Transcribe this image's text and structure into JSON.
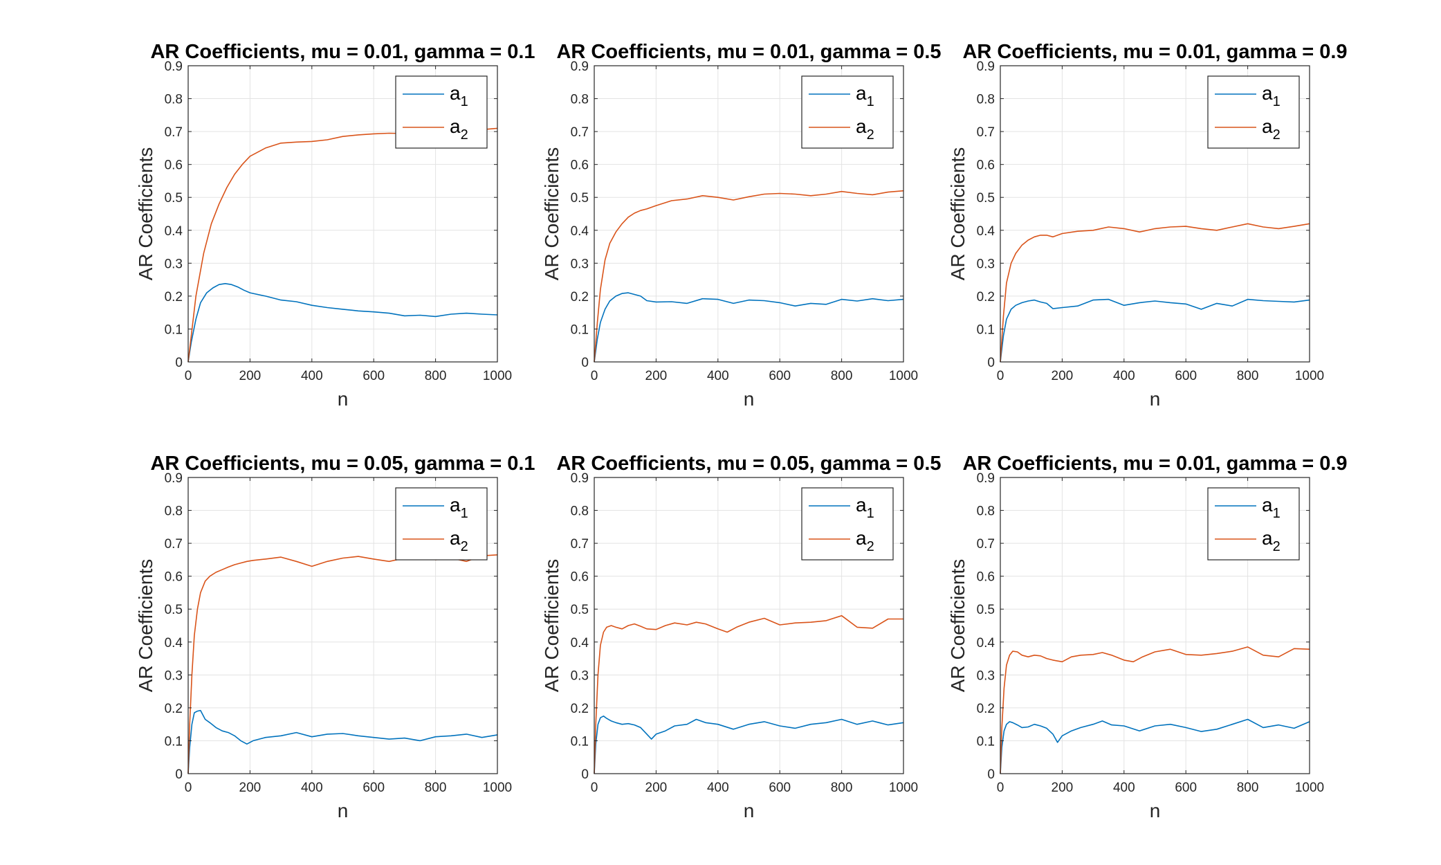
{
  "chart_data": [
    {
      "type": "line",
      "title": "AR Coefficients, mu = 0.01, gamma = 0.1",
      "xlabel": "n",
      "ylabel": "AR Coefficients",
      "xlim": [
        0,
        1000
      ],
      "ylim": [
        0,
        0.9
      ],
      "xticks": [
        "0",
        "200",
        "400",
        "600",
        "800",
        "1000"
      ],
      "yticks": [
        "0",
        "0.1",
        "0.2",
        "0.3",
        "0.4",
        "0.5",
        "0.6",
        "0.7",
        "0.8",
        "0.9"
      ],
      "grid": true,
      "legend_position": "top-right",
      "series": [
        {
          "name": "a_1",
          "color": "#0072BD",
          "x": [
            0,
            10,
            25,
            40,
            60,
            80,
            100,
            120,
            140,
            160,
            180,
            200,
            250,
            300,
            350,
            400,
            450,
            500,
            550,
            600,
            650,
            700,
            750,
            800,
            850,
            900,
            950,
            1000
          ],
          "values": [
            0,
            0.06,
            0.13,
            0.18,
            0.21,
            0.225,
            0.235,
            0.238,
            0.235,
            0.228,
            0.218,
            0.21,
            0.2,
            0.188,
            0.183,
            0.172,
            0.165,
            0.16,
            0.155,
            0.152,
            0.148,
            0.14,
            0.142,
            0.138,
            0.145,
            0.148,
            0.145,
            0.143
          ]
        },
        {
          "name": "a_2",
          "color": "#D95319",
          "x": [
            0,
            10,
            25,
            50,
            75,
            100,
            125,
            150,
            175,
            200,
            250,
            300,
            350,
            400,
            450,
            500,
            550,
            600,
            650,
            700,
            750,
            800,
            850,
            900,
            950,
            1000
          ],
          "values": [
            0,
            0.08,
            0.2,
            0.33,
            0.42,
            0.48,
            0.53,
            0.57,
            0.6,
            0.625,
            0.65,
            0.665,
            0.668,
            0.67,
            0.675,
            0.685,
            0.69,
            0.693,
            0.695,
            0.694,
            0.7,
            0.698,
            0.703,
            0.705,
            0.706,
            0.71
          ]
        }
      ]
    },
    {
      "type": "line",
      "title": "AR Coefficients, mu = 0.01, gamma = 0.5",
      "xlabel": "n",
      "ylabel": "AR Coefficients",
      "xlim": [
        0,
        1000
      ],
      "ylim": [
        0,
        0.9
      ],
      "xticks": [
        "0",
        "200",
        "400",
        "600",
        "800",
        "1000"
      ],
      "yticks": [
        "0",
        "0.1",
        "0.2",
        "0.3",
        "0.4",
        "0.5",
        "0.6",
        "0.7",
        "0.8",
        "0.9"
      ],
      "grid": true,
      "legend_position": "top-right",
      "series": [
        {
          "name": "a_1",
          "color": "#0072BD",
          "x": [
            0,
            10,
            20,
            35,
            50,
            70,
            90,
            110,
            130,
            150,
            170,
            200,
            250,
            300,
            350,
            400,
            450,
            500,
            550,
            600,
            650,
            700,
            750,
            800,
            850,
            900,
            950,
            1000
          ],
          "values": [
            0,
            0.07,
            0.12,
            0.16,
            0.185,
            0.2,
            0.208,
            0.21,
            0.205,
            0.2,
            0.186,
            0.182,
            0.183,
            0.178,
            0.192,
            0.19,
            0.178,
            0.188,
            0.186,
            0.18,
            0.17,
            0.178,
            0.175,
            0.19,
            0.185,
            0.192,
            0.186,
            0.19
          ]
        },
        {
          "name": "a_2",
          "color": "#D95319",
          "x": [
            0,
            10,
            20,
            35,
            50,
            70,
            90,
            110,
            130,
            150,
            170,
            200,
            250,
            300,
            350,
            400,
            450,
            500,
            550,
            600,
            650,
            700,
            750,
            800,
            850,
            900,
            950,
            1000
          ],
          "values": [
            0,
            0.12,
            0.22,
            0.31,
            0.36,
            0.395,
            0.42,
            0.44,
            0.452,
            0.46,
            0.465,
            0.475,
            0.49,
            0.495,
            0.505,
            0.5,
            0.492,
            0.502,
            0.51,
            0.512,
            0.51,
            0.505,
            0.51,
            0.518,
            0.512,
            0.508,
            0.516,
            0.52
          ]
        }
      ]
    },
    {
      "type": "line",
      "title": "AR Coefficients, mu = 0.01, gamma = 0.9",
      "xlabel": "n",
      "ylabel": "AR Coefficients",
      "xlim": [
        0,
        1000
      ],
      "ylim": [
        0,
        0.9
      ],
      "xticks": [
        "0",
        "200",
        "400",
        "600",
        "800",
        "1000"
      ],
      "yticks": [
        "0",
        "0.1",
        "0.2",
        "0.3",
        "0.4",
        "0.5",
        "0.6",
        "0.7",
        "0.8",
        "0.9"
      ],
      "grid": true,
      "legend_position": "top-right",
      "series": [
        {
          "name": "a_1",
          "color": "#0072BD",
          "x": [
            0,
            10,
            20,
            35,
            50,
            70,
            90,
            110,
            130,
            150,
            170,
            200,
            250,
            300,
            350,
            400,
            450,
            500,
            550,
            600,
            650,
            700,
            750,
            800,
            850,
            900,
            950,
            1000
          ],
          "values": [
            0,
            0.08,
            0.13,
            0.16,
            0.172,
            0.18,
            0.185,
            0.188,
            0.182,
            0.178,
            0.162,
            0.165,
            0.17,
            0.188,
            0.19,
            0.172,
            0.18,
            0.185,
            0.18,
            0.176,
            0.16,
            0.178,
            0.17,
            0.19,
            0.186,
            0.184,
            0.182,
            0.188
          ]
        },
        {
          "name": "a_2",
          "color": "#D95319",
          "x": [
            0,
            10,
            20,
            35,
            50,
            70,
            90,
            110,
            130,
            150,
            170,
            200,
            250,
            300,
            350,
            400,
            450,
            500,
            550,
            600,
            650,
            700,
            750,
            800,
            850,
            900,
            950,
            1000
          ],
          "values": [
            0,
            0.14,
            0.24,
            0.3,
            0.33,
            0.355,
            0.37,
            0.38,
            0.385,
            0.385,
            0.38,
            0.39,
            0.397,
            0.4,
            0.41,
            0.405,
            0.395,
            0.405,
            0.41,
            0.412,
            0.405,
            0.4,
            0.41,
            0.42,
            0.41,
            0.405,
            0.412,
            0.42
          ]
        }
      ]
    },
    {
      "type": "line",
      "title": "AR Coefficients, mu = 0.05, gamma = 0.1",
      "xlabel": "n",
      "ylabel": "AR Coefficients",
      "xlim": [
        0,
        1000
      ],
      "ylim": [
        0,
        0.9
      ],
      "xticks": [
        "0",
        "200",
        "400",
        "600",
        "800",
        "1000"
      ],
      "yticks": [
        "0",
        "0.1",
        "0.2",
        "0.3",
        "0.4",
        "0.5",
        "0.6",
        "0.7",
        "0.8",
        "0.9"
      ],
      "grid": true,
      "legend_position": "top-right",
      "series": [
        {
          "name": "a_1",
          "color": "#0072BD",
          "x": [
            0,
            5,
            12,
            20,
            30,
            40,
            55,
            70,
            90,
            110,
            130,
            150,
            170,
            190,
            210,
            250,
            300,
            350,
            400,
            450,
            500,
            550,
            600,
            650,
            700,
            750,
            800,
            850,
            900,
            950,
            1000
          ],
          "values": [
            0,
            0.08,
            0.15,
            0.185,
            0.19,
            0.192,
            0.165,
            0.155,
            0.14,
            0.13,
            0.125,
            0.115,
            0.1,
            0.09,
            0.1,
            0.11,
            0.115,
            0.125,
            0.112,
            0.12,
            0.122,
            0.115,
            0.11,
            0.105,
            0.108,
            0.1,
            0.112,
            0.115,
            0.12,
            0.11,
            0.118
          ]
        },
        {
          "name": "a_2",
          "color": "#D95319",
          "x": [
            0,
            5,
            12,
            20,
            30,
            40,
            55,
            70,
            90,
            110,
            130,
            150,
            170,
            190,
            210,
            250,
            300,
            350,
            400,
            450,
            500,
            550,
            600,
            650,
            700,
            750,
            800,
            850,
            900,
            950,
            1000
          ],
          "values": [
            0,
            0.15,
            0.3,
            0.42,
            0.5,
            0.55,
            0.585,
            0.6,
            0.612,
            0.62,
            0.628,
            0.635,
            0.64,
            0.645,
            0.648,
            0.652,
            0.658,
            0.645,
            0.63,
            0.645,
            0.655,
            0.66,
            0.652,
            0.645,
            0.655,
            0.66,
            0.65,
            0.655,
            0.645,
            0.662,
            0.665
          ]
        }
      ]
    },
    {
      "type": "line",
      "title": "AR Coefficients, mu = 0.05, gamma = 0.5",
      "xlabel": "n",
      "ylabel": "AR Coefficients",
      "xlim": [
        0,
        1000
      ],
      "ylim": [
        0,
        0.9
      ],
      "xticks": [
        "0",
        "200",
        "400",
        "600",
        "800",
        "1000"
      ],
      "yticks": [
        "0",
        "0.1",
        "0.2",
        "0.3",
        "0.4",
        "0.5",
        "0.6",
        "0.7",
        "0.8",
        "0.9"
      ],
      "grid": true,
      "legend_position": "top-right",
      "series": [
        {
          "name": "a_1",
          "color": "#0072BD",
          "x": [
            0,
            5,
            12,
            20,
            30,
            40,
            55,
            70,
            90,
            110,
            130,
            150,
            170,
            185,
            200,
            230,
            260,
            300,
            330,
            360,
            400,
            450,
            500,
            550,
            600,
            650,
            700,
            750,
            800,
            850,
            900,
            950,
            1000
          ],
          "values": [
            0,
            0.09,
            0.15,
            0.17,
            0.175,
            0.168,
            0.16,
            0.155,
            0.15,
            0.152,
            0.148,
            0.14,
            0.12,
            0.105,
            0.12,
            0.13,
            0.145,
            0.15,
            0.165,
            0.155,
            0.15,
            0.135,
            0.15,
            0.158,
            0.145,
            0.138,
            0.15,
            0.155,
            0.165,
            0.15,
            0.16,
            0.148,
            0.155
          ]
        },
        {
          "name": "a_2",
          "color": "#D95319",
          "x": [
            0,
            5,
            12,
            20,
            30,
            40,
            55,
            70,
            90,
            110,
            130,
            150,
            170,
            200,
            230,
            260,
            300,
            330,
            360,
            400,
            430,
            460,
            500,
            550,
            600,
            650,
            700,
            750,
            800,
            850,
            900,
            950,
            1000
          ],
          "values": [
            0,
            0.15,
            0.3,
            0.39,
            0.43,
            0.445,
            0.45,
            0.445,
            0.44,
            0.45,
            0.455,
            0.448,
            0.44,
            0.438,
            0.45,
            0.458,
            0.452,
            0.46,
            0.455,
            0.44,
            0.43,
            0.445,
            0.46,
            0.472,
            0.452,
            0.458,
            0.46,
            0.465,
            0.48,
            0.445,
            0.442,
            0.47,
            0.47
          ]
        }
      ]
    },
    {
      "type": "line",
      "title": "AR Coefficients, mu = 0.01, gamma = 0.9",
      "xlabel": "n",
      "ylabel": "AR Coefficients",
      "xlim": [
        0,
        1000
      ],
      "ylim": [
        0,
        0.9
      ],
      "xticks": [
        "0",
        "200",
        "400",
        "600",
        "800",
        "1000"
      ],
      "yticks": [
        "0",
        "0.1",
        "0.2",
        "0.3",
        "0.4",
        "0.5",
        "0.6",
        "0.7",
        "0.8",
        "0.9"
      ],
      "grid": true,
      "legend_position": "top-right",
      "series": [
        {
          "name": "a_1",
          "color": "#0072BD",
          "x": [
            0,
            5,
            12,
            20,
            30,
            40,
            55,
            70,
            90,
            110,
            130,
            150,
            170,
            185,
            200,
            230,
            260,
            300,
            330,
            360,
            400,
            450,
            500,
            550,
            600,
            650,
            700,
            750,
            800,
            850,
            900,
            950,
            1000
          ],
          "values": [
            0,
            0.08,
            0.13,
            0.15,
            0.158,
            0.155,
            0.148,
            0.14,
            0.142,
            0.15,
            0.145,
            0.138,
            0.12,
            0.095,
            0.115,
            0.13,
            0.14,
            0.15,
            0.16,
            0.148,
            0.145,
            0.13,
            0.145,
            0.15,
            0.14,
            0.128,
            0.135,
            0.15,
            0.165,
            0.14,
            0.148,
            0.138,
            0.158
          ]
        },
        {
          "name": "a_2",
          "color": "#D95319",
          "x": [
            0,
            5,
            12,
            20,
            30,
            40,
            55,
            70,
            90,
            110,
            130,
            150,
            170,
            200,
            230,
            260,
            300,
            330,
            360,
            400,
            430,
            460,
            500,
            550,
            600,
            650,
            700,
            750,
            800,
            850,
            900,
            950,
            1000
          ],
          "values": [
            0,
            0.14,
            0.26,
            0.33,
            0.36,
            0.372,
            0.37,
            0.36,
            0.355,
            0.36,
            0.358,
            0.35,
            0.345,
            0.34,
            0.355,
            0.36,
            0.362,
            0.368,
            0.36,
            0.345,
            0.34,
            0.355,
            0.37,
            0.378,
            0.362,
            0.36,
            0.365,
            0.372,
            0.385,
            0.36,
            0.355,
            0.38,
            0.378
          ]
        }
      ]
    }
  ]
}
